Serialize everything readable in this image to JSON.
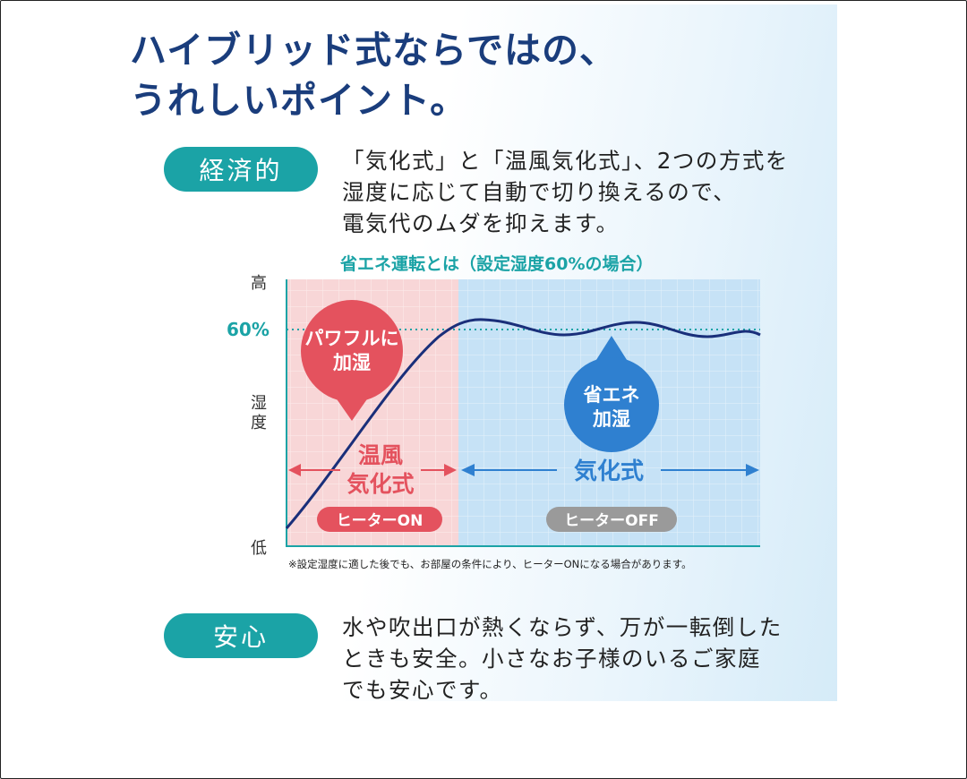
{
  "headline": {
    "line1": "ハイブリッド式ならではの、",
    "line2": "うれしいポイント。"
  },
  "section1": {
    "label": "経済的",
    "desc_lines": [
      "「気化式」と「温風気化式」、2つの方式を",
      "湿度に応じて自動で切り換えるので、",
      "電気代のムダを抑えます。"
    ]
  },
  "chart": {
    "title": "省エネ運転とは（設定湿度60%の場合）",
    "y_high": "高",
    "y_low": "低",
    "y_axis_label": "湿度",
    "setpoint_label": "60%",
    "bubble_left": [
      "パワフルに",
      "加湿"
    ],
    "bubble_right": [
      "省エネ",
      "加湿"
    ],
    "mode_left": [
      "温風",
      "気化式"
    ],
    "mode_right": "気化式",
    "badge_left": "ヒーターON",
    "badge_right": "ヒーターOFF",
    "footnote": "※設定湿度に適した後でも、お部屋の条件により、ヒーターONになる場合があります。",
    "colors": {
      "heater_zone": "#f8d6d7",
      "vapor_zone": "#c6e2f6",
      "curve": "#1a2f7a",
      "red": "#e4525e",
      "blue": "#2f80d0",
      "teal": "#1ba3a6",
      "gray": "#9a9a9a"
    }
  },
  "section2": {
    "label": "安心",
    "desc_lines": [
      "水や吹出口が熱くならず、万が一転倒した",
      "ときも安全。小さなお子様のいるご家庭",
      "でも安心です。"
    ]
  }
}
